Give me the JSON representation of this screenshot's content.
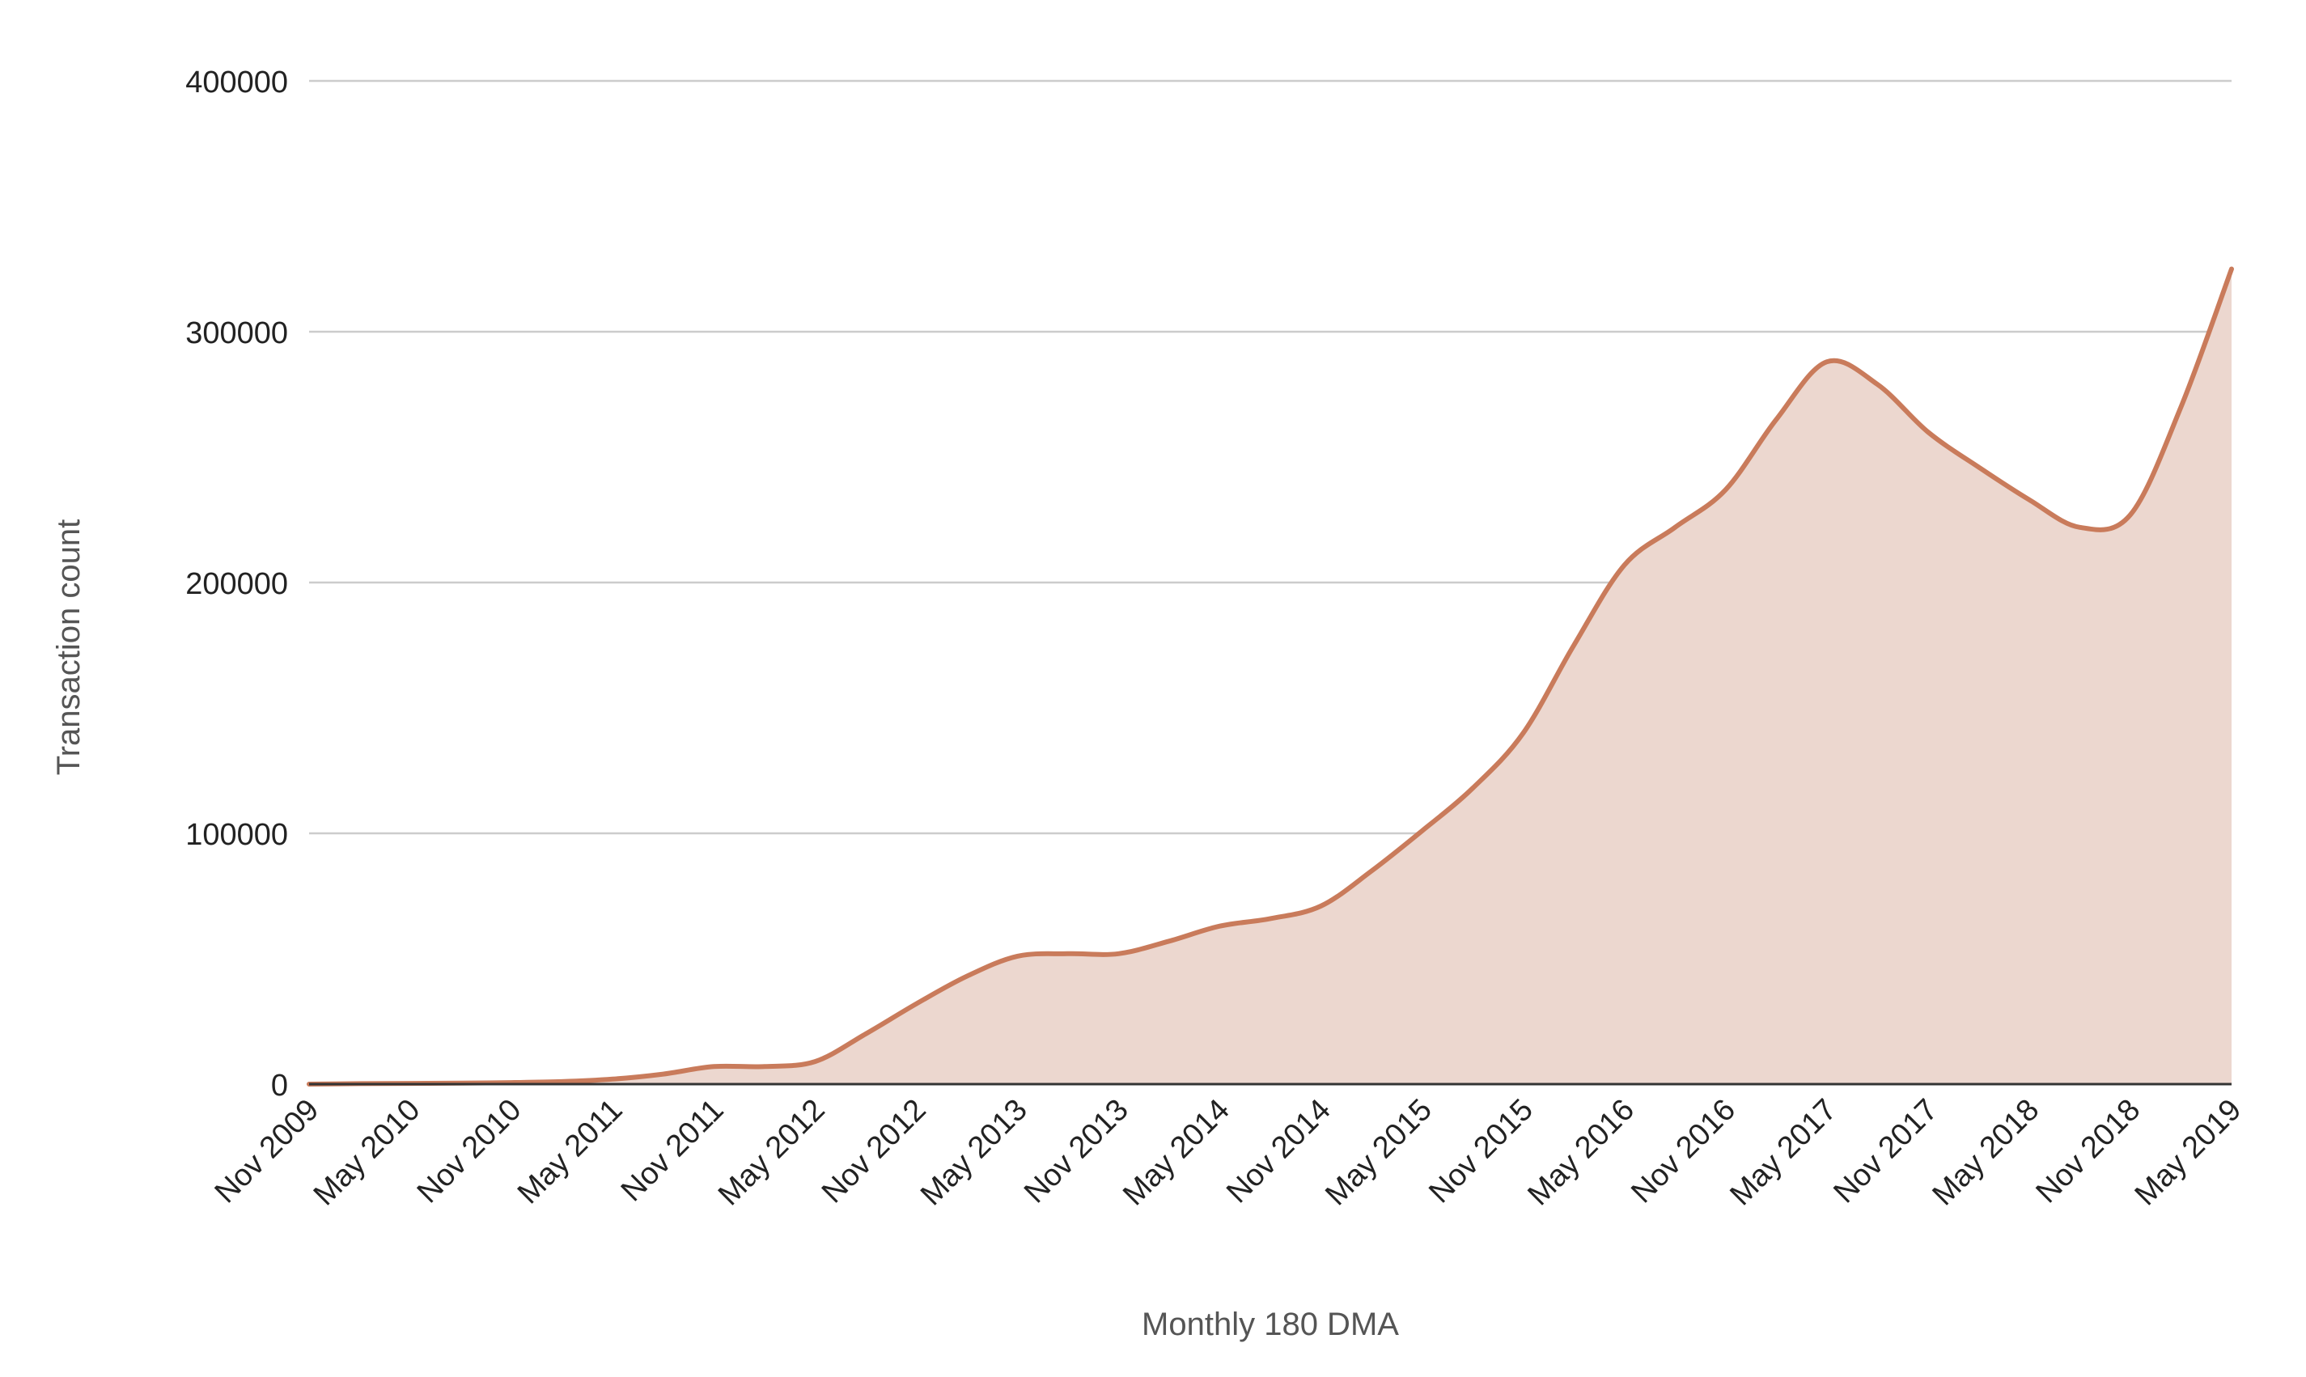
{
  "chart_data": {
    "type": "area",
    "xlabel": "Monthly 180 DMA",
    "ylabel": "Transaction count",
    "ylim": [
      0,
      400000
    ],
    "yticks": [
      0,
      100000,
      200000,
      300000,
      400000
    ],
    "ytick_labels": [
      "0",
      "100000",
      "200000",
      "300000",
      "400000"
    ],
    "xlim": [
      "Nov 2009",
      "May 2019"
    ],
    "xtick_labels": [
      "Nov 2009",
      "May 2010",
      "Nov 2010",
      "May 2011",
      "Nov 2011",
      "May 2012",
      "Nov 2012",
      "May 2013",
      "Nov 2013",
      "May 2014",
      "Nov 2014",
      "May 2015",
      "Nov 2015",
      "May 2016",
      "Nov 2016",
      "May 2017",
      "Nov 2017",
      "May 2018",
      "Nov 2018",
      "May 2019"
    ],
    "grid": true,
    "legend": false,
    "colors": {
      "line": "#c97b5b",
      "fill": "#ecd7cf",
      "grid": "#cccccc",
      "baseline": "#333333"
    },
    "series": [
      {
        "x": [
          "Nov 2009",
          "Feb 2010",
          "May 2010",
          "Aug 2010",
          "Nov 2010",
          "Feb 2011",
          "May 2011",
          "Aug 2011",
          "Nov 2011",
          "Feb 2012",
          "May 2012",
          "Aug 2012",
          "Nov 2012",
          "Feb 2013",
          "May 2013",
          "Aug 2013",
          "Nov 2013",
          "Feb 2014",
          "May 2014",
          "Aug 2014",
          "Nov 2014",
          "Feb 2015",
          "May 2015",
          "Aug 2015",
          "Nov 2015",
          "Feb 2016",
          "May 2016",
          "Aug 2016",
          "Nov 2016",
          "Feb 2017",
          "May 2017",
          "Aug 2017",
          "Nov 2017",
          "Feb 2018",
          "May 2018",
          "Aug 2018",
          "Nov 2018",
          "Feb 2019",
          "May 2019"
        ],
        "values": [
          0,
          200,
          300,
          400,
          600,
          1000,
          2000,
          4000,
          7000,
          7000,
          9000,
          20000,
          32000,
          43000,
          51000,
          52000,
          52000,
          57000,
          63000,
          66000,
          71000,
          85000,
          101000,
          118000,
          140000,
          175000,
          207000,
          222000,
          237000,
          265000,
          288000,
          279000,
          260000,
          246000,
          233000,
          222000,
          227000,
          270000,
          325000
        ]
      }
    ]
  }
}
